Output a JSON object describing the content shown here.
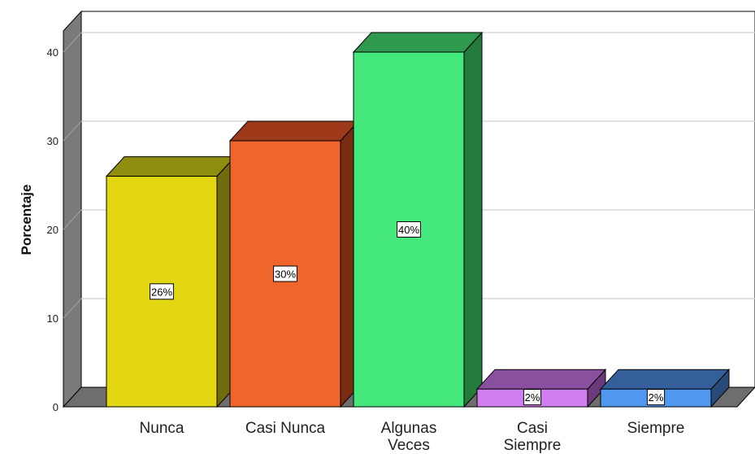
{
  "chart_data": {
    "type": "bar",
    "style": "3d",
    "title": "",
    "xlabel": "",
    "ylabel": "Porcentaje",
    "categories": [
      "Nunca",
      "Casi Nunca",
      "Algunas Veces",
      "Casi Siempre",
      "Siempre"
    ],
    "category_lines": [
      [
        "Nunca"
      ],
      [
        "Casi Nunca"
      ],
      [
        "Algunas",
        "Veces"
      ],
      [
        "Casi",
        "Siempre"
      ],
      [
        "Siempre"
      ]
    ],
    "values": [
      26,
      30,
      40,
      2,
      2
    ],
    "data_labels": [
      "26%",
      "30%",
      "40%",
      "2%",
      "2%"
    ],
    "yticks": [
      0,
      10,
      20,
      30,
      40
    ],
    "ylim": [
      0,
      43
    ],
    "grid": true,
    "legend": "none",
    "colors": {
      "front": [
        "#e2d712",
        "#f0652c",
        "#44e87c",
        "#d17ef0",
        "#4f97ef"
      ],
      "top": [
        "#8f8d10",
        "#9e3a1a",
        "#2f9a4d",
        "#8a4f9e",
        "#355f9a"
      ],
      "side": [
        "#6e6c0c",
        "#7a2c12",
        "#237a3a",
        "#6a3a7a",
        "#2a4a7a"
      ],
      "wall": "#7a7a7a",
      "floor": "#6e6e6e",
      "grid": "#cfcfcf"
    }
  }
}
